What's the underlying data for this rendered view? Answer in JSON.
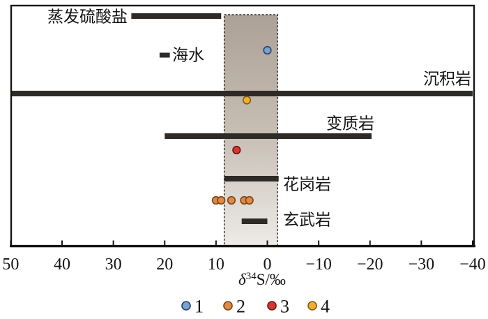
{
  "chart_data": {
    "type": "range-bar-scatter",
    "title": "",
    "xlabel": {
      "delta": "δ",
      "sup": "34",
      "rest": "S/‰"
    },
    "x_axis": {
      "reversed": true,
      "min": 50,
      "max": -40,
      "ticks": [
        50,
        40,
        30,
        20,
        10,
        0,
        -10,
        -20,
        -30,
        -40
      ],
      "tick_labels": [
        "50",
        "40",
        "30",
        "20",
        "10",
        "0",
        "−10",
        "−20",
        "−30",
        "−40"
      ]
    },
    "highlight_band": {
      "from_permil": 8.4,
      "to_permil": -2.0,
      "border_style": "dashed",
      "fill_top": "#aca197",
      "fill_mid": "#c6bdb3",
      "fill_bottom": "#edebe7"
    },
    "bar_color": "#2e2a25",
    "ranges": [
      {
        "id": "evaporite",
        "label": "蒸发硫酸盐",
        "from_permil": 26.5,
        "to_permil": 9
      },
      {
        "id": "seawater",
        "label": "海水",
        "from_permil": 21,
        "to_permil": 19
      },
      {
        "id": "sedimentary",
        "label": "沉积岩",
        "from_permil": 50,
        "to_permil": -40
      },
      {
        "id": "metamorphic",
        "label": "变质岩",
        "from_permil": 20,
        "to_permil": -20.3
      },
      {
        "id": "granite",
        "label": "花岗岩",
        "from_permil": 8.4,
        "to_permil": -2.2
      },
      {
        "id": "basalt",
        "label": "玄武岩",
        "from_permil": 5,
        "to_permil": 0
      }
    ],
    "points": [
      {
        "group": "1",
        "color": "#7aa2cf",
        "stroke": "#27406b",
        "values_permil": [
          0
        ]
      },
      {
        "group": "2",
        "color": "#df8a45",
        "stroke": "#7d4516",
        "values_permil": [
          10,
          9,
          7,
          4.5,
          3.5
        ]
      },
      {
        "group": "3",
        "color": "#d63831",
        "stroke": "#6f1310",
        "values_permil": [
          6
        ]
      },
      {
        "group": "4",
        "color": "#f1af2f",
        "stroke": "#7d5c11",
        "values_permil": [
          4
        ]
      }
    ],
    "legend": {
      "items": [
        {
          "label": "1",
          "color": "#7aa2cf",
          "stroke": "#27406b"
        },
        {
          "label": "2",
          "color": "#df8a45",
          "stroke": "#7d4516"
        },
        {
          "label": "3",
          "color": "#d63831",
          "stroke": "#6f1310"
        },
        {
          "label": "4",
          "color": "#f1af2f",
          "stroke": "#7d5c11"
        }
      ]
    }
  }
}
